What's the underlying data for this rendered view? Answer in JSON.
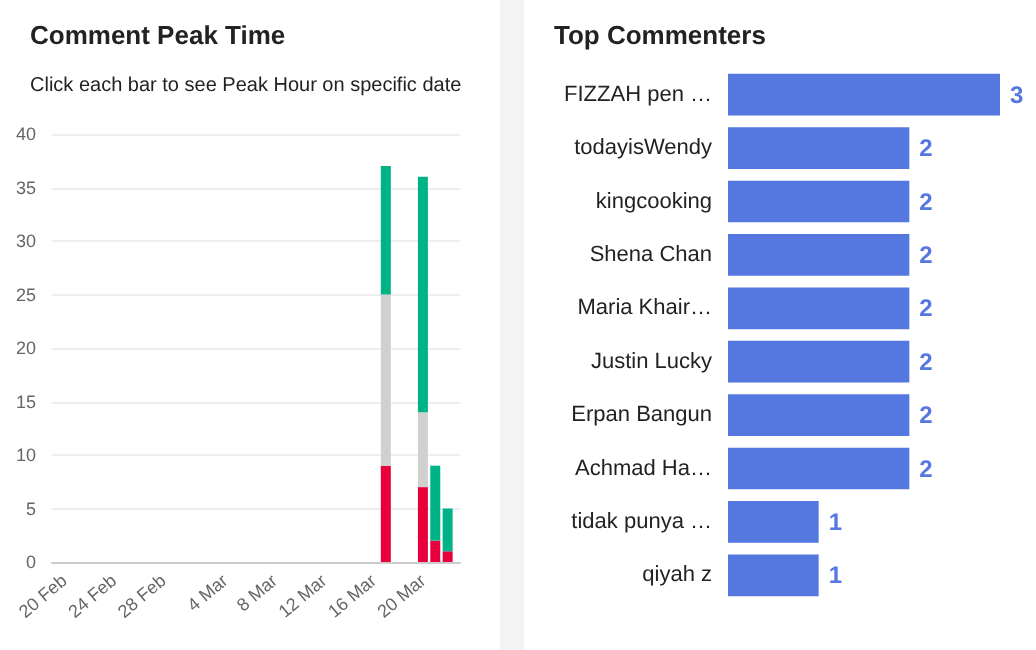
{
  "chart_data": [
    {
      "type": "bar",
      "title": "Comment Peak Time",
      "subtitle": "Click each bar to see Peak Hour on specific date",
      "stacked": true,
      "grid": "y",
      "x": [
        "--03-17",
        "--03-20",
        "--03-21",
        "--03-22"
      ],
      "xlim": [
        "--02-19",
        "--03-23"
      ],
      "xticks": [
        {
          "value": "--02-20",
          "label": "20 Feb"
        },
        {
          "value": "--02-24",
          "label": "24 Feb"
        },
        {
          "value": "--02-28",
          "label": "28 Feb"
        },
        {
          "value": "--03-04",
          "label": "4 Mar"
        },
        {
          "value": "--03-08",
          "label": "8 Mar"
        },
        {
          "value": "--03-12",
          "label": "12 Mar"
        },
        {
          "value": "--03-16",
          "label": "16 Mar"
        },
        {
          "value": "--03-20",
          "label": "20 Mar"
        }
      ],
      "ylim": [
        0,
        40
      ],
      "yticks": [
        0,
        5,
        10,
        15,
        20,
        25,
        30,
        35,
        40
      ],
      "series": [
        {
          "color": "#e8003d",
          "values": [
            9,
            7,
            2,
            1
          ]
        },
        {
          "color": "#d0d0d0",
          "values": [
            16,
            7,
            0,
            0
          ]
        },
        {
          "color": "#00b386",
          "values": [
            12,
            22,
            7,
            4
          ]
        }
      ]
    },
    {
      "type": "bar",
      "title": "Top Commenters",
      "orientation": "horizontal",
      "data_labels": true,
      "tick_labels": "y",
      "color": "#5577e0",
      "categories": [
        "FIZZAH pen …",
        "todayisWendy",
        "kingcooking",
        "Shena Chan",
        "Maria Khair…",
        "Justin Lucky",
        "Erpan Bangun",
        "Achmad Ha…",
        "tidak punya …",
        "qiyah z"
      ],
      "values": [
        3,
        2,
        2,
        2,
        2,
        2,
        2,
        2,
        1,
        1
      ]
    }
  ]
}
